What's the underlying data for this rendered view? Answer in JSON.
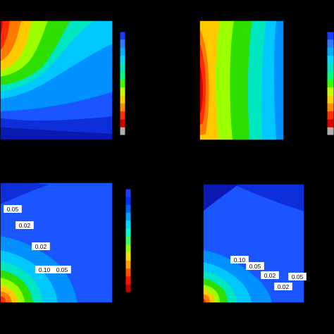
{
  "figure": {
    "background": "#000000",
    "panel_count": 4,
    "colormap": [
      "#cc0000",
      "#ff2a00",
      "#ff7a00",
      "#ffc800",
      "#f5ff00",
      "#9cff00",
      "#2ddf00",
      "#00e05a",
      "#00e6c0",
      "#00c8ff",
      "#0090ff",
      "#1a55ff",
      "#0d2ed8",
      "#0a1ab0"
    ]
  },
  "chart_data": [
    {
      "type": "heatmap",
      "panel": "top-left",
      "style": "filled contour",
      "peak_location": "left edge, near top",
      "title": "",
      "xlabel": "",
      "ylabel": "",
      "colorbar": {
        "placement": "right",
        "colors": [
          "#1a3cff",
          "#2f7bff",
          "#00b0ff",
          "#00d8ff",
          "#00e8c0",
          "#00ff80",
          "#3cff00",
          "#c8ff00",
          "#ffd000",
          "#ff8c00",
          "#ff3000",
          "#d60000",
          "#b0b0b0"
        ]
      }
    },
    {
      "type": "heatmap",
      "panel": "top-right",
      "style": "filled contour",
      "peak_location": "left edge, mid-height",
      "title": "",
      "xlabel": "",
      "ylabel": "",
      "colorbar": {
        "placement": "right",
        "colors": [
          "#1a3cff",
          "#2f7bff",
          "#00b0ff",
          "#00d8ff",
          "#00e8c0",
          "#00ff80",
          "#3cff00",
          "#c8ff00",
          "#ffd000",
          "#ff8c00",
          "#ff3000",
          "#d60000",
          "#b0b0b0"
        ]
      }
    },
    {
      "type": "heatmap",
      "panel": "bottom-left",
      "style": "filled contour with labels",
      "peak_location": "bottom-left corner",
      "contour_labels": [
        "0.05",
        "0.02",
        "0.02",
        "0.10",
        "0.05"
      ],
      "title": "",
      "xlabel": "",
      "ylabel": "",
      "colorbar": {
        "placement": "right",
        "colors": [
          "#1a3cff",
          "#0030ff",
          "#0060ff",
          "#00a0ff",
          "#00d8ff",
          "#00ffd0",
          "#40ff60",
          "#a0ff00",
          "#ffe000",
          "#ffa000",
          "#ff5000",
          "#ff1000",
          "#c80000"
        ]
      }
    },
    {
      "type": "heatmap",
      "panel": "bottom-right",
      "style": "filled contour with labels",
      "peak_location": "bottom-left corner",
      "contour_labels": [
        "0.10",
        "0.05",
        "0.02",
        "0.05",
        "0.02"
      ],
      "title": "",
      "xlabel": "",
      "ylabel": ""
    }
  ]
}
